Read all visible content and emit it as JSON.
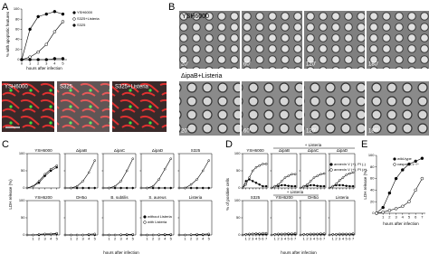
{
  "figure": {
    "panel_labels": [
      "A",
      "B",
      "C",
      "D",
      "E"
    ],
    "a_images": [
      "YSH6000",
      "S325",
      "S325+Listeria"
    ],
    "b_rows": [
      {
        "label": "YSH6000",
        "times": [
          "20'",
          "60'",
          "120'",
          "180'"
        ]
      },
      {
        "label": "ΔipaB+Listeria",
        "times": [
          "20'",
          "60'",
          "120'",
          "180'"
        ]
      }
    ]
  },
  "chart_data": [
    {
      "type": "line",
      "xlabel": "hours after infection",
      "ylabel": "% with apoptotic features",
      "x": [
        0,
        1,
        2,
        3,
        4,
        5
      ],
      "xlim": [
        0,
        5.5
      ],
      "xticks": [
        0,
        1,
        2,
        3,
        4,
        5
      ],
      "ylim": [
        0,
        100
      ],
      "yticks": [
        0,
        20,
        40,
        60,
        80,
        100
      ],
      "series": [
        {
          "name": "YSH6000",
          "color": "#000000",
          "filled": true,
          "values": [
            0,
            60,
            85,
            90,
            95,
            90
          ]
        },
        {
          "name": "S325+Listeria",
          "color": "#000000",
          "filled": false,
          "values": [
            0,
            5,
            15,
            30,
            55,
            75
          ]
        },
        {
          "name": "S325",
          "color": "#000000",
          "filled": true,
          "values": [
            0,
            0,
            0,
            0,
            2,
            2
          ]
        }
      ]
    },
    {
      "type": "facets",
      "xlabel": "hours after infection",
      "ylabel": "LDH release (%)",
      "x": [
        0,
        1,
        2,
        3,
        4,
        5
      ],
      "xlim": [
        0,
        5.5
      ],
      "xticks": [
        1,
        2,
        3,
        4,
        5
      ],
      "ylim": [
        0,
        100
      ],
      "yticks": [
        0,
        50,
        100
      ],
      "series": [
        {
          "name": "without Listeria",
          "color": "#000000",
          "filled": true
        },
        {
          "name": "with Listeria",
          "color": "#000000",
          "filled": false
        }
      ],
      "facets": [
        {
          "title": "YSH6000",
          "values": [
            [
              0,
              5,
              15,
              35,
              50,
              60
            ],
            [
              0,
              5,
              20,
              40,
              55,
              65
            ]
          ]
        },
        {
          "title": "ΔipaB",
          "values": [
            [
              0,
              0,
              0,
              0,
              0,
              0
            ],
            [
              0,
              0,
              5,
              20,
              45,
              80
            ]
          ]
        },
        {
          "title": "ΔipaC",
          "values": [
            [
              0,
              0,
              0,
              0,
              0,
              0
            ],
            [
              0,
              0,
              5,
              20,
              50,
              85
            ]
          ]
        },
        {
          "title": "ΔipaD",
          "values": [
            [
              0,
              0,
              0,
              0,
              0,
              0
            ],
            [
              0,
              0,
              5,
              25,
              55,
              85
            ]
          ]
        },
        {
          "title": "S325",
          "values": [
            [
              0,
              0,
              0,
              0,
              0,
              0
            ],
            [
              0,
              0,
              10,
              25,
              50,
              80
            ]
          ]
        },
        {
          "title": "YSH6200",
          "values": [
            [
              0,
              0,
              0,
              2,
              2,
              3
            ],
            [
              0,
              0,
              2,
              3,
              3,
              5
            ]
          ]
        },
        {
          "title": "DH5α",
          "values": [
            [
              0,
              0,
              0,
              0,
              0,
              0
            ],
            [
              0,
              0,
              0,
              0,
              2,
              3
            ]
          ]
        },
        {
          "title": "B. subtilis",
          "values": [
            [
              0,
              0,
              0,
              0,
              0,
              0
            ],
            [
              0,
              0,
              0,
              1,
              2,
              2
            ]
          ]
        },
        {
          "title": "S. aureus",
          "values": [
            [
              0,
              0,
              0,
              0,
              0,
              0
            ],
            [
              0,
              0,
              0,
              1,
              2,
              2
            ]
          ]
        },
        {
          "title": "Listeria",
          "values": [
            [
              0,
              0,
              0,
              0,
              0,
              0
            ],
            [
              0,
              0,
              1,
              2,
              2,
              3
            ]
          ]
        }
      ]
    },
    {
      "type": "facets",
      "xlabel": "hours after infection",
      "ylabel": "% of positive cells",
      "x": [
        0,
        1,
        2,
        3,
        4,
        5,
        6,
        7
      ],
      "xlim": [
        0,
        7.5
      ],
      "xticks": [
        1,
        2,
        3,
        4,
        5,
        6,
        7
      ],
      "ylim": [
        0,
        100
      ],
      "yticks": [
        0,
        50,
        100
      ],
      "headers": [
        "+ Listeria",
        "+ Listeria"
      ],
      "series": [
        {
          "name": "annexin V (+), PI (-)",
          "color": "#000000",
          "filled": true
        },
        {
          "name": "annexin V (+), PI (+)",
          "color": "#000000",
          "filled": false
        }
      ],
      "facets": [
        {
          "title": "YSH6000",
          "values": [
            [
              0,
              20,
              25,
              20,
              15,
              10,
              5,
              5
            ],
            [
              0,
              10,
              30,
              50,
              60,
              65,
              70,
              70
            ]
          ]
        },
        {
          "title": "ΔipaB",
          "values": [
            [
              0,
              5,
              5,
              8,
              8,
              6,
              5,
              5
            ],
            [
              0,
              5,
              10,
              20,
              30,
              35,
              40,
              40
            ]
          ]
        },
        {
          "title": "ΔipaC",
          "values": [
            [
              0,
              5,
              5,
              8,
              8,
              6,
              5,
              5
            ],
            [
              0,
              5,
              10,
              20,
              30,
              35,
              40,
              42
            ]
          ]
        },
        {
          "title": "ΔipaD",
          "values": [
            [
              0,
              5,
              8,
              8,
              8,
              6,
              5,
              5
            ],
            [
              0,
              5,
              12,
              22,
              30,
              38,
              42,
              45
            ]
          ]
        },
        {
          "title": "S325",
          "values": [
            [
              0,
              2,
              2,
              3,
              3,
              2,
              2,
              2
            ],
            [
              0,
              2,
              3,
              3,
              4,
              4,
              5,
              5
            ]
          ]
        },
        {
          "title": "YSH6200",
          "values": [
            [
              0,
              2,
              2,
              2,
              3,
              2,
              2,
              2
            ],
            [
              0,
              2,
              3,
              3,
              3,
              4,
              4,
              5
            ]
          ]
        },
        {
          "title": "DH5α",
          "values": [
            [
              0,
              2,
              2,
              2,
              2,
              2,
              2,
              2
            ],
            [
              0,
              2,
              2,
              3,
              3,
              3,
              4,
              4
            ]
          ]
        },
        {
          "title": "Listeria",
          "values": [
            [
              0,
              2,
              2,
              2,
              2,
              2,
              2,
              2
            ],
            [
              0,
              2,
              2,
              3,
              3,
              3,
              3,
              4
            ]
          ]
        }
      ]
    },
    {
      "type": "line",
      "xlabel": "hours after infection",
      "ylabel": "LDH release (%)",
      "x": [
        0,
        1,
        2,
        3,
        4,
        5,
        6,
        7
      ],
      "xlim": [
        0,
        7.5
      ],
      "xticks": [
        1,
        2,
        3,
        4,
        5,
        6,
        7
      ],
      "ylim": [
        0,
        100
      ],
      "yticks": [
        0,
        20,
        40,
        60,
        80,
        100
      ],
      "series": [
        {
          "name": "wild-type",
          "color": "#000000",
          "filled": true,
          "values": [
            0,
            10,
            35,
            60,
            75,
            85,
            90,
            95
          ]
        },
        {
          "name": "caspase-1−/−",
          "color": "#000000",
          "filled": false,
          "values": [
            0,
            2,
            5,
            8,
            12,
            20,
            40,
            60
          ]
        }
      ]
    }
  ]
}
